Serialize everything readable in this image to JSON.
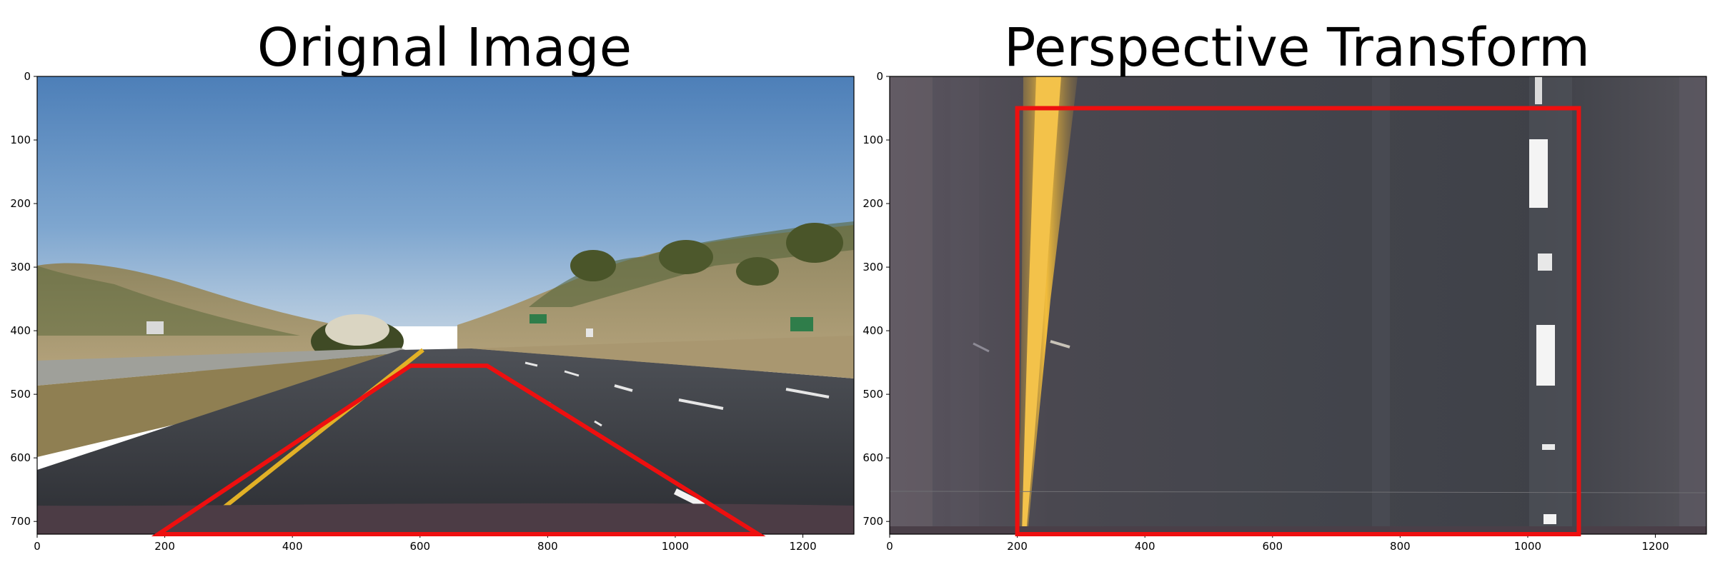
{
  "chart_data": [
    {
      "type": "image",
      "title": "Orignal Image",
      "xlim": [
        0,
        1280
      ],
      "ylim": [
        720,
        0
      ],
      "xticks": [
        0,
        200,
        400,
        600,
        800,
        1000,
        1200
      ],
      "yticks": [
        0,
        100,
        200,
        300,
        400,
        500,
        600,
        700
      ],
      "overlay": {
        "shape": "polygon",
        "color": "#ee0f0f",
        "points": [
          [
            190,
            720
          ],
          [
            585,
            455
          ],
          [
            705,
            455
          ],
          [
            1130,
            720
          ]
        ]
      }
    },
    {
      "type": "image",
      "title": "Perspective Transform",
      "xlim": [
        0,
        1280
      ],
      "ylim": [
        720,
        0
      ],
      "xticks": [
        0,
        200,
        400,
        600,
        800,
        1000,
        1200
      ],
      "yticks": [
        0,
        100,
        200,
        300,
        400,
        500,
        600,
        700
      ],
      "overlay": {
        "shape": "polygon",
        "color": "#ee0f0f",
        "points": [
          [
            200,
            720
          ],
          [
            200,
            50
          ],
          [
            1080,
            50
          ],
          [
            1080,
            720
          ]
        ]
      }
    }
  ]
}
